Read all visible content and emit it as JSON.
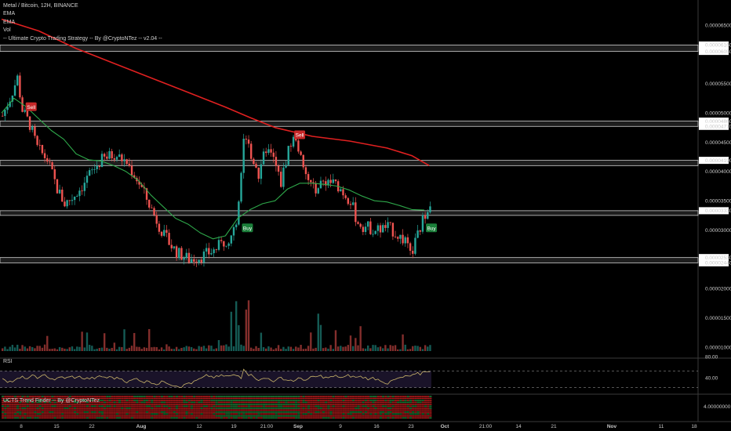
{
  "header": {
    "title": "Metal / Bitcoin, 12H, BINANCE",
    "indicators": [
      "EMA",
      "EMA",
      "Vol",
      "-- Ultimate Crypto Trading Strategy -- By @CryptoNTez -- v2.04 --"
    ]
  },
  "panes": {
    "rsi_label": "RSI",
    "ucts_label": "UCTS Trend Finder -- By @CryptoNTez"
  },
  "colors": {
    "background": "#000000",
    "up": "#26a69a",
    "down": "#ef5350",
    "ema_long": "#e02020",
    "ema_short": "#2ea84a",
    "rsi": "#c9b46a",
    "zone_fill": "#555555"
  },
  "chart_data": {
    "type": "candlestick",
    "price_axis_labels": [
      "0.00006500",
      "0.00006160",
      "0.00006050",
      "0.00005500",
      "0.00005000",
      "0.00004860",
      "0.00004770",
      "0.00004500",
      "0.00004190",
      "0.00004000",
      "0.00003500",
      "0.00003330",
      "0.00003000",
      "0.00002530",
      "0.00002440",
      "0.00002000",
      "0.00001500",
      "0.00001000"
    ],
    "rsi_axis_labels": [
      "80.00",
      "40.00"
    ],
    "ucts_axis_labels": [
      "4.00000000"
    ],
    "x_tick_labels": [
      "8",
      "15",
      "22",
      "Aug",
      "12",
      "19",
      "21:00",
      "Sep",
      "9",
      "16",
      "23",
      "Oct",
      "21:00",
      "14",
      "21",
      "Nov",
      "11",
      "18"
    ],
    "price_range": [
      1.83e-05,
      6.68e-05
    ],
    "zones": [
      [
        6.05e-05,
        6.16e-05
      ],
      [
        4.77e-05,
        4.86e-05
      ],
      [
        4.1e-05,
        4.19e-05
      ],
      [
        3.25e-05,
        3.33e-05
      ],
      [
        2.44e-05,
        2.53e-05
      ]
    ],
    "signals": [
      {
        "label": "Sell",
        "type": "sell",
        "time": "Jul 8",
        "price": 5.1e-05
      },
      {
        "label": "Buy",
        "type": "buy",
        "time": "Aug 18",
        "price": 3e-05
      },
      {
        "label": "Sell",
        "type": "sell",
        "time": "Sep 5",
        "price": 4.6e-05
      },
      {
        "label": "Buy",
        "type": "buy",
        "time": "Sep 25",
        "price": 3.03e-05
      }
    ],
    "ema_long": [
      [
        0,
        6.6e-05
      ],
      [
        15,
        6.4e-05
      ],
      [
        30,
        6.1e-05
      ],
      [
        45,
        5.85e-05
      ],
      [
        60,
        5.6e-05
      ],
      [
        75,
        5.35e-05
      ],
      [
        90,
        5.1e-05
      ],
      [
        100,
        4.92e-05
      ],
      [
        110,
        4.75e-05
      ],
      [
        125,
        4.6e-05
      ],
      [
        140,
        4.52e-05
      ],
      [
        155,
        4.4e-05
      ],
      [
        165,
        4.27e-05
      ],
      [
        172,
        4.1e-05
      ]
    ],
    "ema_short": [
      [
        0,
        5e-05
      ],
      [
        5,
        5.25e-05
      ],
      [
        10,
        5.1e-05
      ],
      [
        15,
        4.9e-05
      ],
      [
        20,
        4.7e-05
      ],
      [
        25,
        4.55e-05
      ],
      [
        30,
        4.3e-05
      ],
      [
        35,
        4.2e-05
      ],
      [
        40,
        4.18e-05
      ],
      [
        45,
        4.1e-05
      ],
      [
        50,
        4e-05
      ],
      [
        55,
        3.85e-05
      ],
      [
        60,
        3.6e-05
      ],
      [
        65,
        3.4e-05
      ],
      [
        70,
        3.2e-05
      ],
      [
        75,
        3.1e-05
      ],
      [
        80,
        2.95e-05
      ],
      [
        85,
        2.85e-05
      ],
      [
        90,
        2.9e-05
      ],
      [
        95,
        3.2e-05
      ],
      [
        100,
        3.35e-05
      ],
      [
        105,
        3.45e-05
      ],
      [
        110,
        3.5e-05
      ],
      [
        115,
        3.7e-05
      ],
      [
        120,
        3.8e-05
      ],
      [
        125,
        3.8e-05
      ],
      [
        130,
        3.78e-05
      ],
      [
        135,
        3.75e-05
      ],
      [
        140,
        3.68e-05
      ],
      [
        145,
        3.58e-05
      ],
      [
        150,
        3.5e-05
      ],
      [
        155,
        3.48e-05
      ],
      [
        160,
        3.42e-05
      ],
      [
        165,
        3.35e-05
      ],
      [
        170,
        3.34e-05
      ]
    ],
    "price_path": [
      [
        0,
        4.95e-05
      ],
      [
        3,
        5.25e-05
      ],
      [
        6,
        5.6e-05
      ],
      [
        8,
        5.05e-05
      ],
      [
        11,
        4.8e-05
      ],
      [
        14,
        4.4e-05
      ],
      [
        18,
        4.2e-05
      ],
      [
        22,
        3.7e-05
      ],
      [
        25,
        3.45e-05
      ],
      [
        28,
        3.55e-05
      ],
      [
        32,
        3.75e-05
      ],
      [
        35,
        3.95e-05
      ],
      [
        40,
        4.2e-05
      ],
      [
        45,
        4.3e-05
      ],
      [
        50,
        4.15e-05
      ],
      [
        55,
        3.8e-05
      ],
      [
        60,
        3.35e-05
      ],
      [
        65,
        2.9e-05
      ],
      [
        70,
        2.62e-05
      ],
      [
        75,
        2.5e-05
      ],
      [
        80,
        2.55e-05
      ],
      [
        85,
        2.65e-05
      ],
      [
        89,
        2.8e-05
      ],
      [
        93,
        2.95e-05
      ],
      [
        95,
        3.4e-05
      ],
      [
        97,
        4.6e-05
      ],
      [
        100,
        4.3e-05
      ],
      [
        103,
        3.95e-05
      ],
      [
        106,
        4.4e-05
      ],
      [
        109,
        4.2e-05
      ],
      [
        112,
        3.8e-05
      ],
      [
        115,
        4.4e-05
      ],
      [
        118,
        4.6e-05
      ],
      [
        121,
        4e-05
      ],
      [
        125,
        3.7e-05
      ],
      [
        130,
        3.85e-05
      ],
      [
        135,
        3.75e-05
      ],
      [
        140,
        3.5e-05
      ],
      [
        143,
        3.1e-05
      ],
      [
        147,
        3.05e-05
      ],
      [
        150,
        3e-05
      ],
      [
        155,
        3.05e-05
      ],
      [
        158,
        2.95e-05
      ],
      [
        162,
        2.8e-05
      ],
      [
        164,
        2.55e-05
      ],
      [
        167,
        2.9e-05
      ],
      [
        170,
        3.3e-05
      ],
      [
        172,
        3.5e-05
      ]
    ],
    "volume_range": [
      0,
      2.7e-05
    ],
    "rsi_range": [
      20,
      95
    ]
  }
}
